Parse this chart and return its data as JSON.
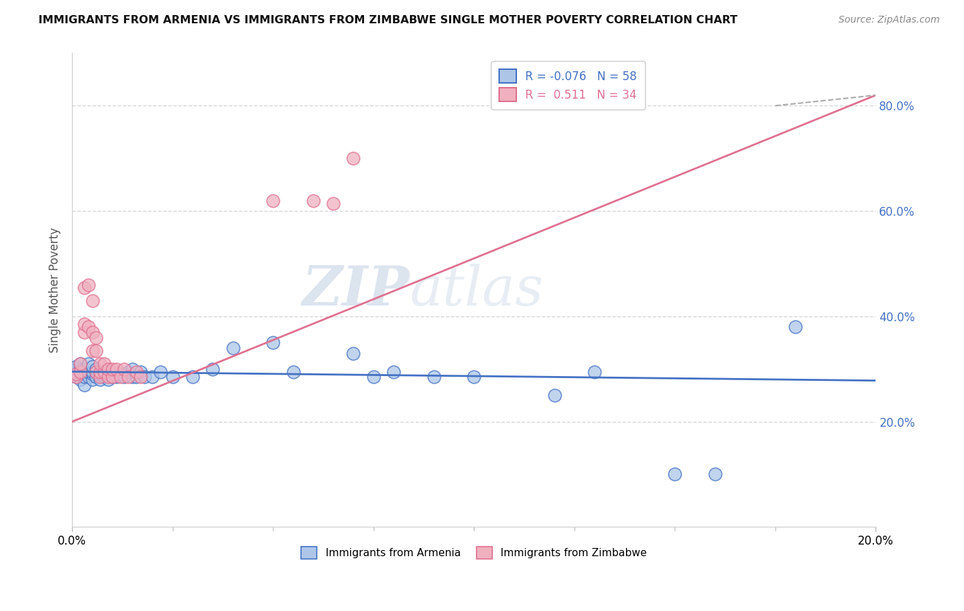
{
  "title": "IMMIGRANTS FROM ARMENIA VS IMMIGRANTS FROM ZIMBABWE SINGLE MOTHER POVERTY CORRELATION CHART",
  "source": "Source: ZipAtlas.com",
  "ylabel": "Single Mother Poverty",
  "r_armenia": -0.076,
  "n_armenia": 58,
  "r_zimbabwe": 0.511,
  "n_zimbabwe": 34,
  "color_armenia": "#adc6e8",
  "color_zimbabwe": "#f0b0c0",
  "color_armenia_line": "#4472c4",
  "color_zimbabwe_line": "#e07090",
  "watermark_zip": "ZIP",
  "watermark_atlas": "atlas",
  "armenia_x": [
    0.001,
    0.001,
    0.001,
    0.001,
    0.002,
    0.002,
    0.002,
    0.002,
    0.002,
    0.003,
    0.003,
    0.003,
    0.003,
    0.004,
    0.004,
    0.004,
    0.005,
    0.005,
    0.005,
    0.005,
    0.006,
    0.006,
    0.006,
    0.007,
    0.007,
    0.008,
    0.008,
    0.009,
    0.009,
    0.01,
    0.01,
    0.011,
    0.012,
    0.013,
    0.014,
    0.015,
    0.015,
    0.016,
    0.017,
    0.018,
    0.02,
    0.022,
    0.025,
    0.03,
    0.035,
    0.04,
    0.05,
    0.055,
    0.07,
    0.075,
    0.08,
    0.09,
    0.1,
    0.12,
    0.13,
    0.15,
    0.16,
    0.18
  ],
  "armenia_y": [
    0.285,
    0.295,
    0.3,
    0.305,
    0.28,
    0.29,
    0.295,
    0.3,
    0.31,
    0.27,
    0.285,
    0.295,
    0.3,
    0.285,
    0.295,
    0.31,
    0.28,
    0.29,
    0.295,
    0.305,
    0.285,
    0.295,
    0.3,
    0.28,
    0.29,
    0.285,
    0.295,
    0.28,
    0.29,
    0.285,
    0.295,
    0.285,
    0.29,
    0.285,
    0.295,
    0.285,
    0.3,
    0.285,
    0.295,
    0.285,
    0.285,
    0.295,
    0.285,
    0.285,
    0.3,
    0.34,
    0.35,
    0.295,
    0.33,
    0.285,
    0.295,
    0.285,
    0.285,
    0.25,
    0.295,
    0.1,
    0.1,
    0.38
  ],
  "zimbabwe_x": [
    0.001,
    0.001,
    0.002,
    0.002,
    0.003,
    0.003,
    0.003,
    0.004,
    0.004,
    0.005,
    0.005,
    0.005,
    0.006,
    0.006,
    0.006,
    0.007,
    0.007,
    0.007,
    0.008,
    0.008,
    0.009,
    0.009,
    0.01,
    0.01,
    0.011,
    0.012,
    0.013,
    0.014,
    0.016,
    0.017,
    0.05,
    0.06,
    0.065,
    0.07
  ],
  "zimbabwe_y": [
    0.285,
    0.29,
    0.295,
    0.31,
    0.37,
    0.385,
    0.455,
    0.38,
    0.46,
    0.335,
    0.37,
    0.43,
    0.295,
    0.335,
    0.36,
    0.285,
    0.295,
    0.31,
    0.295,
    0.31,
    0.285,
    0.3,
    0.285,
    0.3,
    0.3,
    0.285,
    0.3,
    0.285,
    0.295,
    0.285,
    0.62,
    0.62,
    0.615,
    0.7
  ],
  "xlim": [
    0.0,
    0.2
  ],
  "ylim": [
    0.0,
    0.9
  ],
  "yticks": [
    0.2,
    0.4,
    0.6,
    0.8
  ],
  "ytick_labels": [
    "20.0%",
    "40.0%",
    "60.0%",
    "80.0%"
  ],
  "xtick_labels": [
    "0.0%",
    "20.0%"
  ],
  "grid_color": "#cccccc",
  "background_color": "#ffffff"
}
